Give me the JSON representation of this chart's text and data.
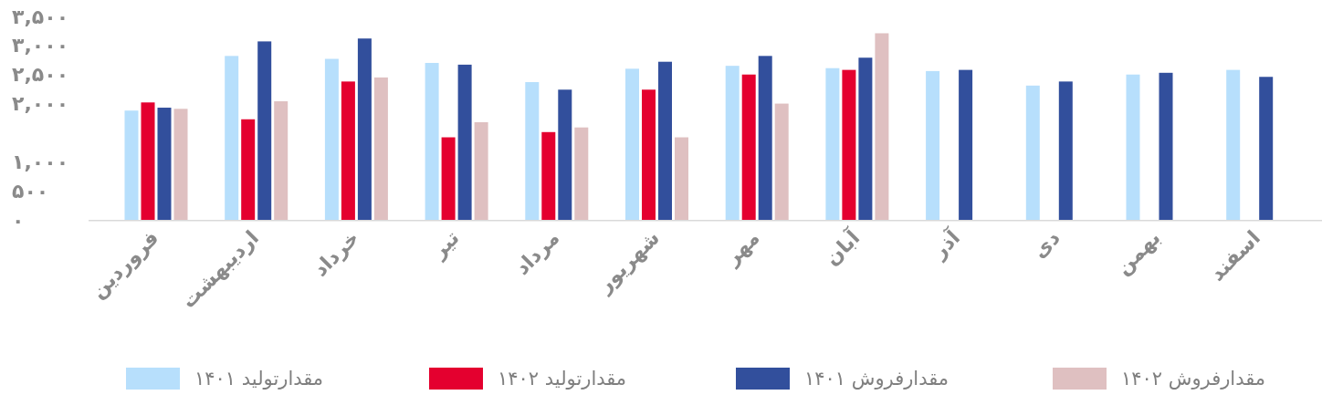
{
  "chart_data": {
    "type": "bar",
    "categories": [
      "فروردین",
      "اردیبهشت",
      "خرداد",
      "تیر",
      "مرداد",
      "شهریور",
      "مهر",
      "آبان",
      "آذر",
      "دی",
      "بهمن",
      "اسفند"
    ],
    "series": [
      {
        "name": "مقدارتولید ۱۴۰۱",
        "color": "#b7dffc",
        "values": [
          1880,
          2820,
          2770,
          2700,
          2370,
          2600,
          2650,
          2610,
          2560,
          2310,
          2500,
          2580
        ]
      },
      {
        "name": "مقدارتولید ۱۴۰۲",
        "color": "#e4002f",
        "values": [
          2020,
          1730,
          2380,
          1420,
          1510,
          2240,
          2500,
          2580,
          null,
          null,
          null,
          null
        ]
      },
      {
        "name": "مقدارفروش ۱۴۰۱",
        "color": "#324f9c",
        "values": [
          1930,
          3070,
          3120,
          2670,
          2240,
          2720,
          2820,
          2790,
          2580,
          2380,
          2530,
          2460
        ]
      },
      {
        "name": "مقدارفروش ۱۴۰۲",
        "color": "#dfc0c1",
        "values": [
          1910,
          2040,
          2450,
          1680,
          1590,
          1420,
          2000,
          3210,
          null,
          null,
          null,
          null
        ]
      }
    ],
    "ylim": [
      0,
      3500
    ],
    "yticks": [
      {
        "value": 0,
        "label": "۰"
      },
      {
        "value": 500,
        "label": "۵۰۰"
      },
      {
        "value": 1000,
        "label": "۱,۰۰۰"
      },
      {
        "value": 2000,
        "label": "۲,۰۰۰"
      },
      {
        "value": 2500,
        "label": "۲,۵۰۰"
      },
      {
        "value": 3000,
        "label": "۳,۰۰۰"
      },
      {
        "value": 3500,
        "label": "۳,۵۰۰"
      }
    ],
    "legend": "bottom"
  }
}
